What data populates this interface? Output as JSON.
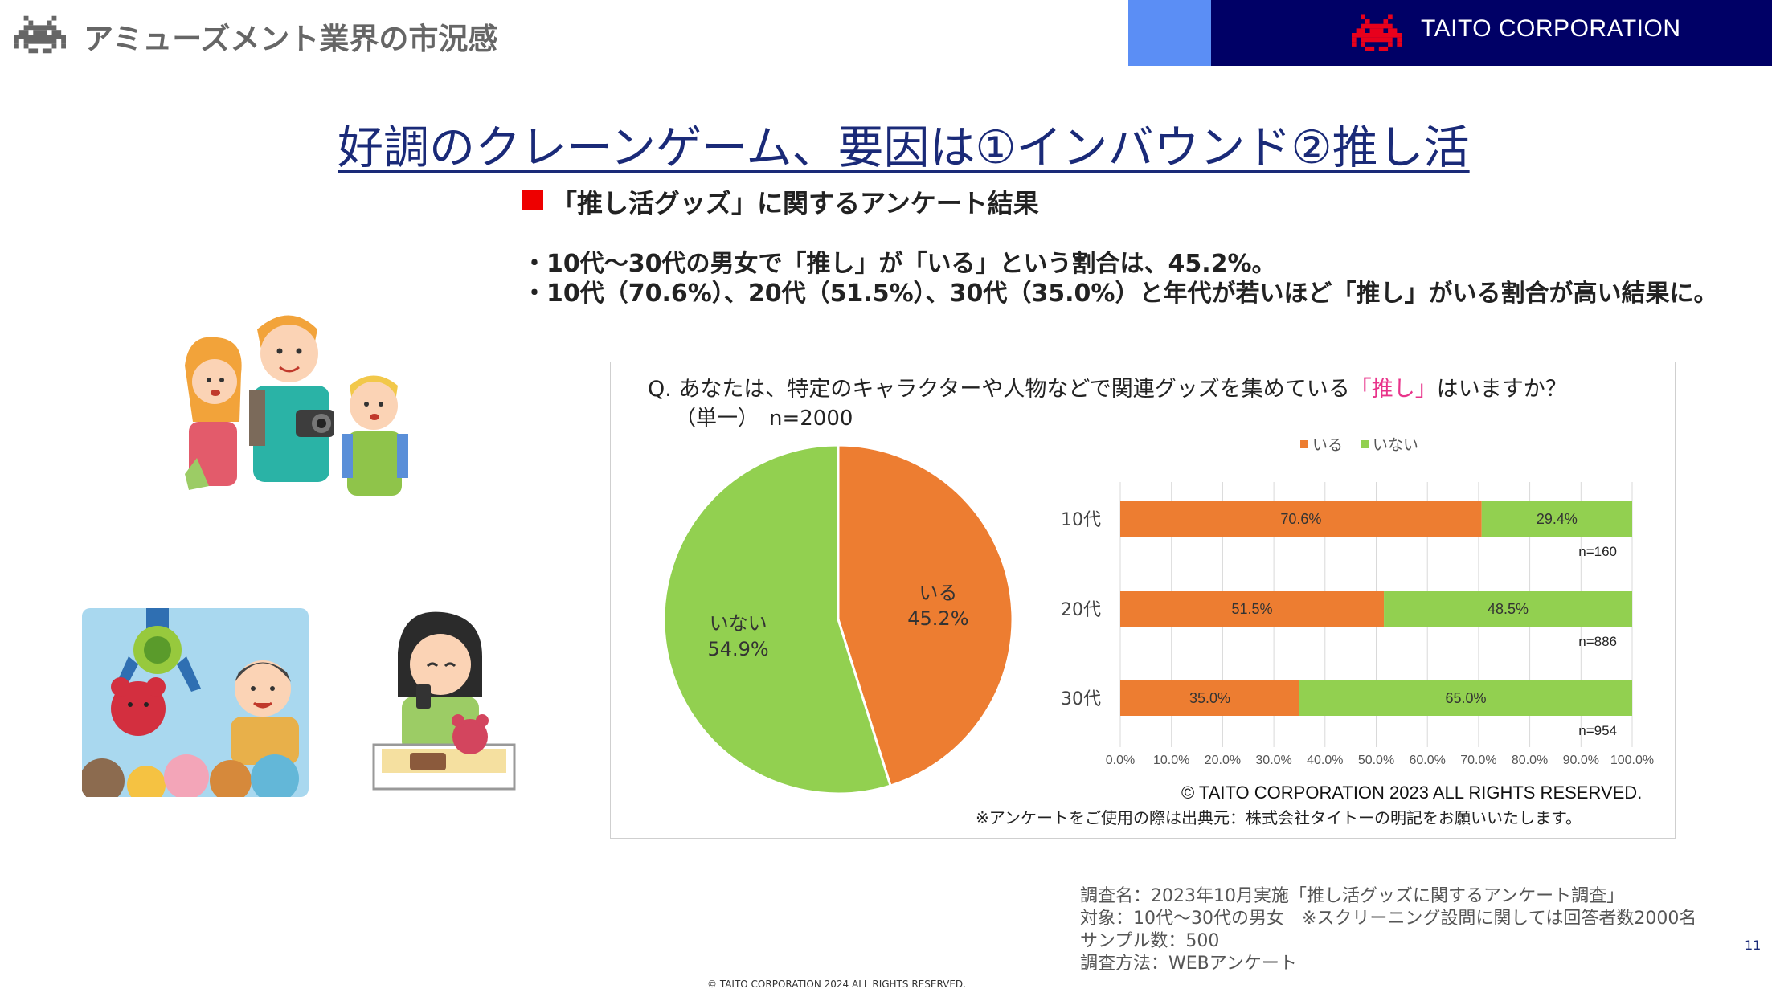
{
  "header": {
    "title": "アミューズメント業界の市況感",
    "brand_name": "TAITO CORPORATION",
    "icon": "space-invader-icon",
    "colors": {
      "accent": "#5b8ef5",
      "brand_bar": "#000066",
      "invader_red": "#e8001c"
    }
  },
  "main_title": "好調のクレーンゲーム、要因は①インバウンド②推し活",
  "section": {
    "title": "「推し活グッズ」に関するアンケート結果",
    "bullets": [
      "・10代～30代の男女で「推し」が「いる」という割合は、45.2%。",
      "・10代（70.6%）、20代（51.5%）、30代（35.0%）と年代が若いほど「推し」がいる割合が高い結果に。"
    ]
  },
  "question": {
    "prefix": "Q. あなたは、特定のキャラクターや人物などで関連グッズを集めている",
    "highlight": "「推し」",
    "suffix": "はいますか？",
    "sub": "（単一）　n=2000"
  },
  "chart_data": [
    {
      "type": "pie",
      "slices": [
        {
          "label": "いる",
          "value": 45.2,
          "display": "45.2%",
          "color": "#ed7d31"
        },
        {
          "label": "いない",
          "value": 54.9,
          "display": "54.9%",
          "color": "#92d050"
        }
      ]
    },
    {
      "type": "bar",
      "orientation": "horizontal",
      "stacked": true,
      "legend_position": "top",
      "legend": [
        {
          "label": "いる",
          "color": "#ed7d31"
        },
        {
          "label": "いない",
          "color": "#92d050"
        }
      ],
      "categories": [
        "10代",
        "20代",
        "30代"
      ],
      "series": [
        {
          "name": "いる",
          "values": [
            70.6,
            51.5,
            35.0
          ],
          "labels": [
            "70.6%",
            "51.5%",
            "35.0%"
          ]
        },
        {
          "name": "いない",
          "values": [
            29.4,
            48.5,
            65.0
          ],
          "labels": [
            "29.4%",
            "48.5%",
            "65.0%"
          ]
        }
      ],
      "sample_sizes": [
        "n=160",
        "n=886",
        "n=954"
      ],
      "xlim": [
        0,
        100
      ],
      "x_tick_labels": [
        "0.0%",
        "10.0%",
        "20.0%",
        "30.0%",
        "40.0%",
        "50.0%",
        "60.0%",
        "70.0%",
        "80.0%",
        "90.0%",
        "100.0%"
      ],
      "grid": true
    }
  ],
  "chart_copyright": "© TAITO CORPORATION 2023 ALL RIGHTS RESERVED.",
  "usage_note": "※アンケートをご使用の際は出典元：株式会社タイトーの明記をお願いいたします。",
  "survey": {
    "name": "調査名：2023年10月実施「推し活グッズに関するアンケート調査」",
    "target": "対象：10代～30代の男女　※スクリーニング設問に関しては回答者数2000名",
    "sample": "サンプル数：500",
    "method": "調査方法：WEBアンケート"
  },
  "page_number": "11",
  "footer_copyright": "© TAITO CORPORATION 2024 ALL RIGHTS RESERVED."
}
